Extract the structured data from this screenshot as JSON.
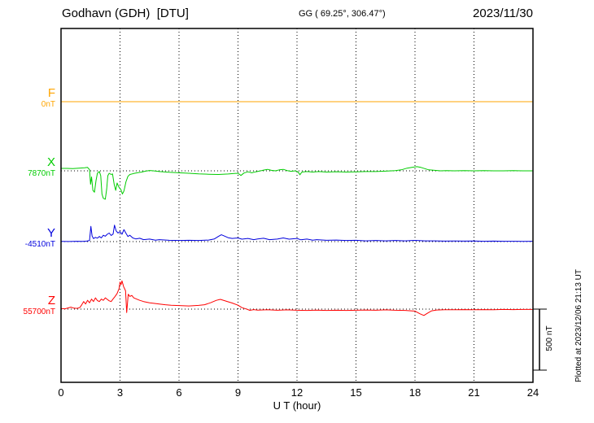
{
  "header": {
    "station": "Godhavn (GDH)  [DTU]",
    "coords": "GG ( 69.25°, 306.47°)",
    "date": "2023/11/30"
  },
  "axis": {
    "xlabel": "U T (hour)"
  },
  "side": {
    "scale_label": "500 nT",
    "plotted_at": "Plotted at 2023/12/06 21:13 UT"
  },
  "components": [
    {
      "name": "F",
      "value_label": "0nT",
      "color": "#ffa500"
    },
    {
      "name": "X",
      "value_label": "7870nT",
      "color": "#00cc00"
    },
    {
      "name": "Y",
      "value_label": "-4510nT",
      "color": "#0000dd"
    },
    {
      "name": "Z",
      "value_label": "55700nT",
      "color": "#ff0000"
    }
  ],
  "chart_data": {
    "type": "line",
    "title": "Godhavn (GDH) [DTU] magnetogram 2023/11/30",
    "xlabel": "U T (hour)",
    "x_range": [
      0,
      24
    ],
    "x_ticks": [
      0,
      3,
      6,
      9,
      12,
      15,
      18,
      21,
      24
    ],
    "grid": "dotted vertical lines every 3 h; dotted horizontal line at each component baseline",
    "legend_position": "left margin (component letters with baseline values)",
    "scale_bar_nT": 500,
    "series": [
      {
        "name": "F",
        "baseline_label": "0nT",
        "color": "#ffa500",
        "points": [
          [
            0,
            0
          ],
          [
            24,
            0
          ]
        ]
      },
      {
        "name": "X",
        "baseline_label": "7870nT",
        "color": "#00cc00",
        "points": [
          [
            0,
            20
          ],
          [
            0.3,
            20
          ],
          [
            0.6,
            18
          ],
          [
            0.9,
            22
          ],
          [
            1.2,
            25
          ],
          [
            1.35,
            28
          ],
          [
            1.45,
            10
          ],
          [
            1.5,
            -110
          ],
          [
            1.55,
            -50
          ],
          [
            1.62,
            -160
          ],
          [
            1.7,
            -175
          ],
          [
            1.78,
            -80
          ],
          [
            1.85,
            -20
          ],
          [
            1.95,
            -5
          ],
          [
            2.02,
            -40
          ],
          [
            2.08,
            -190
          ],
          [
            2.15,
            -225
          ],
          [
            2.25,
            -233
          ],
          [
            2.32,
            -150
          ],
          [
            2.38,
            -40
          ],
          [
            2.45,
            -20
          ],
          [
            2.55,
            -30
          ],
          [
            2.62,
            -25
          ],
          [
            2.7,
            -110
          ],
          [
            2.78,
            -160
          ],
          [
            2.85,
            -100
          ],
          [
            2.95,
            -135
          ],
          [
            3.05,
            -155
          ],
          [
            3.12,
            -190
          ],
          [
            3.2,
            -165
          ],
          [
            3.3,
            -90
          ],
          [
            3.4,
            -45
          ],
          [
            3.5,
            -30
          ],
          [
            3.7,
            -22
          ],
          [
            3.9,
            -15
          ],
          [
            4.1,
            -10
          ],
          [
            4.3,
            -3
          ],
          [
            4.5,
            3
          ],
          [
            4.7,
            0
          ],
          [
            5.0,
            -6
          ],
          [
            5.5,
            -12
          ],
          [
            6.0,
            -16
          ],
          [
            6.5,
            -20
          ],
          [
            7.0,
            -25
          ],
          [
            7.5,
            -28
          ],
          [
            8.0,
            -30
          ],
          [
            8.5,
            -26
          ],
          [
            8.8,
            -22
          ],
          [
            9.0,
            -20
          ],
          [
            9.15,
            -38
          ],
          [
            9.3,
            -18
          ],
          [
            9.5,
            -8
          ],
          [
            9.7,
            -16
          ],
          [
            9.9,
            -8
          ],
          [
            10.1,
            -2
          ],
          [
            10.3,
            6
          ],
          [
            10.5,
            12
          ],
          [
            10.7,
            4
          ],
          [
            10.9,
            0
          ],
          [
            11.1,
            8
          ],
          [
            11.3,
            12
          ],
          [
            11.5,
            2
          ],
          [
            11.7,
            -4
          ],
          [
            11.9,
            0
          ],
          [
            12.05,
            -8
          ],
          [
            12.15,
            -32
          ],
          [
            12.25,
            -10
          ],
          [
            12.5,
            -6
          ],
          [
            12.8,
            -10
          ],
          [
            13.1,
            -6
          ],
          [
            13.5,
            -10
          ],
          [
            14.0,
            -7
          ],
          [
            14.5,
            -10
          ],
          [
            15.0,
            -8
          ],
          [
            15.5,
            -6
          ],
          [
            16.0,
            -6
          ],
          [
            16.5,
            -3
          ],
          [
            17.0,
            2
          ],
          [
            17.3,
            8
          ],
          [
            17.6,
            22
          ],
          [
            17.9,
            30
          ],
          [
            18.1,
            34
          ],
          [
            18.3,
            28
          ],
          [
            18.5,
            18
          ],
          [
            18.7,
            8
          ],
          [
            19.0,
            4
          ],
          [
            19.3,
            0
          ],
          [
            19.6,
            2
          ],
          [
            20.0,
            0
          ],
          [
            20.5,
            1
          ],
          [
            21.0,
            0
          ],
          [
            21.5,
            1
          ],
          [
            22.0,
            0
          ],
          [
            22.5,
            0
          ],
          [
            23.0,
            1
          ],
          [
            23.5,
            0
          ],
          [
            24,
            0
          ]
        ]
      },
      {
        "name": "Y",
        "baseline_label": "-4510nT",
        "color": "#0000dd",
        "points": [
          [
            0,
            2
          ],
          [
            0.4,
            1
          ],
          [
            0.8,
            3
          ],
          [
            1.1,
            2
          ],
          [
            1.3,
            4
          ],
          [
            1.45,
            8
          ],
          [
            1.52,
            125
          ],
          [
            1.58,
            45
          ],
          [
            1.65,
            25
          ],
          [
            1.75,
            35
          ],
          [
            1.85,
            28
          ],
          [
            1.95,
            42
          ],
          [
            2.05,
            30
          ],
          [
            2.15,
            52
          ],
          [
            2.25,
            44
          ],
          [
            2.35,
            60
          ],
          [
            2.45,
            70
          ],
          [
            2.55,
            50
          ],
          [
            2.65,
            62
          ],
          [
            2.72,
            135
          ],
          [
            2.8,
            88
          ],
          [
            2.9,
            70
          ],
          [
            3.0,
            82
          ],
          [
            3.1,
            60
          ],
          [
            3.2,
            98
          ],
          [
            3.3,
            68
          ],
          [
            3.4,
            42
          ],
          [
            3.5,
            52
          ],
          [
            3.65,
            30
          ],
          [
            3.8,
            22
          ],
          [
            4.0,
            27
          ],
          [
            4.2,
            16
          ],
          [
            4.5,
            21
          ],
          [
            4.8,
            12
          ],
          [
            5.0,
            16
          ],
          [
            5.5,
            11
          ],
          [
            6.0,
            9
          ],
          [
            6.5,
            11
          ],
          [
            7.0,
            9
          ],
          [
            7.5,
            13
          ],
          [
            7.8,
            22
          ],
          [
            8.0,
            42
          ],
          [
            8.15,
            56
          ],
          [
            8.3,
            46
          ],
          [
            8.5,
            32
          ],
          [
            8.7,
            26
          ],
          [
            9.0,
            30
          ],
          [
            9.2,
            20
          ],
          [
            9.5,
            26
          ],
          [
            9.8,
            16
          ],
          [
            10.0,
            22
          ],
          [
            10.3,
            27
          ],
          [
            10.6,
            16
          ],
          [
            11.0,
            21
          ],
          [
            11.3,
            30
          ],
          [
            11.6,
            20
          ],
          [
            12.0,
            26
          ],
          [
            12.2,
            15
          ],
          [
            12.5,
            21
          ],
          [
            12.8,
            12
          ],
          [
            13.0,
            16
          ],
          [
            13.5,
            11
          ],
          [
            14.0,
            13
          ],
          [
            14.5,
            9
          ],
          [
            15.0,
            11
          ],
          [
            15.5,
            6
          ],
          [
            16.0,
            9
          ],
          [
            16.5,
            6
          ],
          [
            17.0,
            9
          ],
          [
            17.5,
            6
          ],
          [
            18.0,
            10
          ],
          [
            18.5,
            6
          ],
          [
            19.0,
            6
          ],
          [
            19.5,
            4
          ],
          [
            20.0,
            5
          ],
          [
            20.5,
            4
          ],
          [
            21.0,
            5
          ],
          [
            21.5,
            3
          ],
          [
            22.0,
            4
          ],
          [
            22.5,
            3
          ],
          [
            23.0,
            3
          ],
          [
            23.5,
            2
          ],
          [
            24,
            3
          ]
        ]
      },
      {
        "name": "Z",
        "baseline_label": "55700nT",
        "color": "#ff0000",
        "points": [
          [
            0,
            5
          ],
          [
            0.2,
            3
          ],
          [
            0.35,
            9
          ],
          [
            0.5,
            16
          ],
          [
            0.65,
            8
          ],
          [
            0.8,
            6
          ],
          [
            0.95,
            12
          ],
          [
            1.05,
            35
          ],
          [
            1.15,
            62
          ],
          [
            1.25,
            42
          ],
          [
            1.35,
            72
          ],
          [
            1.45,
            52
          ],
          [
            1.55,
            82
          ],
          [
            1.65,
            62
          ],
          [
            1.75,
            92
          ],
          [
            1.85,
            70
          ],
          [
            1.95,
            62
          ],
          [
            2.05,
            82
          ],
          [
            2.15,
            72
          ],
          [
            2.25,
            92
          ],
          [
            2.35,
            80
          ],
          [
            2.45,
            68
          ],
          [
            2.55,
            62
          ],
          [
            2.65,
            84
          ],
          [
            2.75,
            105
          ],
          [
            2.85,
            128
          ],
          [
            2.95,
            168
          ],
          [
            3.0,
            222
          ],
          [
            3.05,
            200
          ],
          [
            3.1,
            232
          ],
          [
            3.18,
            185
          ],
          [
            3.28,
            150
          ],
          [
            3.34,
            -28
          ],
          [
            3.42,
            122
          ],
          [
            3.5,
            104
          ],
          [
            3.6,
            112
          ],
          [
            3.7,
            92
          ],
          [
            3.85,
            82
          ],
          [
            4.0,
            72
          ],
          [
            4.2,
            62
          ],
          [
            4.5,
            52
          ],
          [
            4.8,
            46
          ],
          [
            5.0,
            42
          ],
          [
            5.3,
            36
          ],
          [
            5.6,
            32
          ],
          [
            6.0,
            29
          ],
          [
            6.5,
            26
          ],
          [
            7.0,
            31
          ],
          [
            7.3,
            36
          ],
          [
            7.6,
            52
          ],
          [
            7.9,
            72
          ],
          [
            8.1,
            80
          ],
          [
            8.3,
            70
          ],
          [
            8.5,
            60
          ],
          [
            8.7,
            50
          ],
          [
            9.0,
            32
          ],
          [
            9.2,
            12
          ],
          [
            9.4,
            2
          ],
          [
            9.6,
            -10
          ],
          [
            9.8,
            -4
          ],
          [
            10.0,
            -8
          ],
          [
            10.5,
            -5
          ],
          [
            11.0,
            -9
          ],
          [
            11.5,
            -6
          ],
          [
            12.0,
            -9
          ],
          [
            12.5,
            -11
          ],
          [
            13.0,
            -8
          ],
          [
            13.5,
            -11
          ],
          [
            14.0,
            -9
          ],
          [
            14.5,
            -11
          ],
          [
            15.0,
            -9
          ],
          [
            15.5,
            -7
          ],
          [
            16.0,
            -9
          ],
          [
            16.5,
            -6
          ],
          [
            17.0,
            -9
          ],
          [
            17.5,
            -11
          ],
          [
            18.0,
            -16
          ],
          [
            18.25,
            -38
          ],
          [
            18.45,
            -52
          ],
          [
            18.65,
            -32
          ],
          [
            18.85,
            -14
          ],
          [
            19.1,
            -7
          ],
          [
            19.5,
            -5
          ],
          [
            20.0,
            -5
          ],
          [
            20.5,
            -4
          ],
          [
            21.0,
            -5
          ],
          [
            21.5,
            -4
          ],
          [
            22.0,
            -5
          ],
          [
            22.5,
            -3
          ],
          [
            23.0,
            -4
          ],
          [
            23.5,
            -3
          ],
          [
            24,
            -3
          ]
        ]
      }
    ]
  }
}
